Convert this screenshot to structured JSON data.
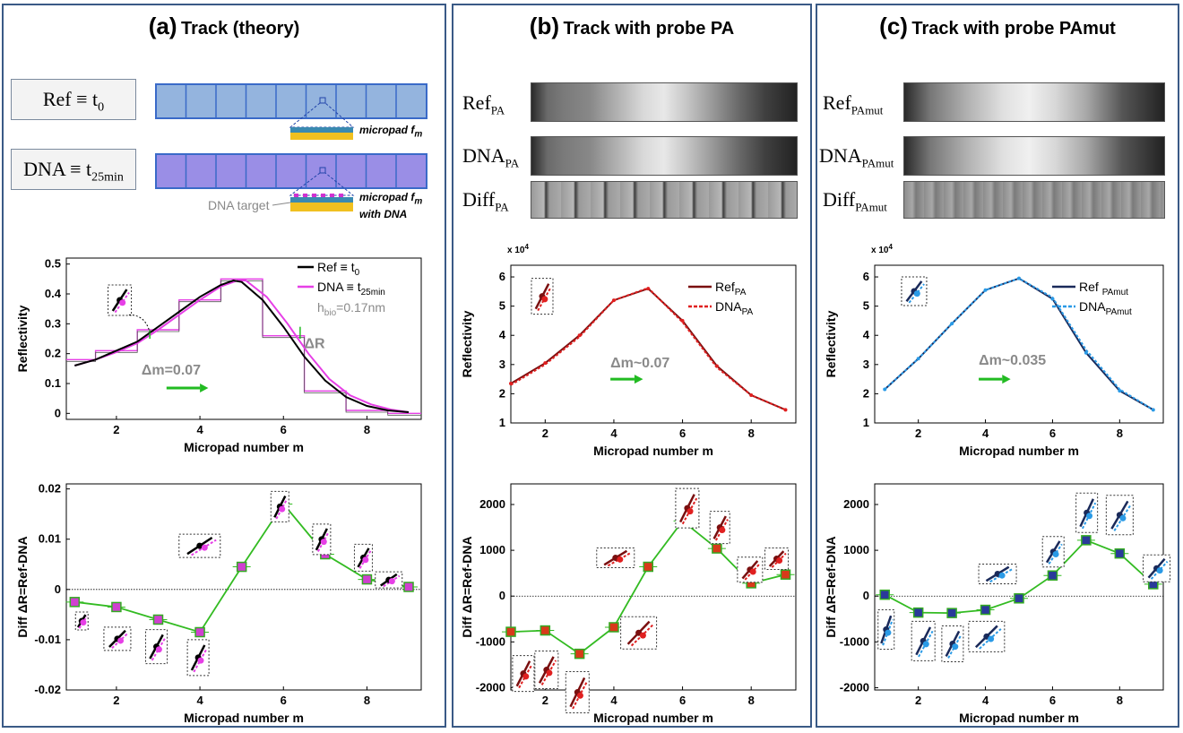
{
  "panels": {
    "a": {
      "letter": "(a)",
      "title": "Track (theory)",
      "ref_label": "Ref ≡ t",
      "ref_sub": "0",
      "dna_label": "DNA ≡ t",
      "dna_sub": "25min",
      "micropad1_label": "micropad f",
      "micropad1_sub": "m",
      "micropad2_label": "micropad f",
      "micropad2_sub": "m",
      "micropad2_line2": "with  DNA",
      "dna_target_label": "DNA target"
    },
    "b": {
      "letter": "(b)",
      "title": "Track with probe PA",
      "ref_label": "Ref",
      "ref_sub": "PA",
      "dna_label": "DNA",
      "dna_sub": "PA",
      "diff_label": "Diff",
      "diff_sub": "PA"
    },
    "c": {
      "letter": "(c)",
      "title": "Track with probe PAmut",
      "ref_label": "Ref",
      "ref_sub": "PAmut",
      "dna_label": "DNA",
      "dna_sub": "PAmut",
      "diff_label": "Diff",
      "diff_sub": "PAmut"
    }
  },
  "colors": {
    "ref_theory": "#000000",
    "dna_theory": "#e63fe6",
    "diff_line": "#33bb22",
    "ref_pa": "#7a0f0f",
    "dna_pa": "#e02020",
    "ref_pamut": "#1a2a5a",
    "dna_pamut": "#2a9ae6",
    "marker_fill_a": "#d040d0",
    "marker_fill_b": "#d83a1a",
    "marker_fill_c": "#2a3a9a",
    "marker_edge": "#33aa22",
    "delta_arrow": "#22bb22",
    "gray_text": "#8a8a8a",
    "track_ref": "#94b4de",
    "track_dna": "#9a8ee6"
  },
  "chart_data": [
    {
      "id": "a-reflectivity",
      "type": "line",
      "xlabel": "Micropad number m",
      "ylabel": "Reflectivity",
      "xlim": [
        0.8,
        9.3
      ],
      "ylim": [
        -0.02,
        0.52
      ],
      "xticks": [
        2,
        4,
        6,
        8
      ],
      "yticks": [
        0,
        0.1,
        0.2,
        0.3,
        0.4,
        0.5
      ],
      "ytick_labels": [
        "0",
        "0.1",
        "0.2",
        "0.3",
        "0.4",
        "0.5"
      ],
      "series": [
        {
          "name": "Ref ≡ t0",
          "x": [
            1,
            1.5,
            2,
            2.5,
            3,
            3.5,
            4,
            4.5,
            4.8,
            5,
            5.5,
            6,
            6.5,
            7,
            7.5,
            8,
            8.5,
            9
          ],
          "values": [
            0.16,
            0.18,
            0.21,
            0.24,
            0.29,
            0.34,
            0.39,
            0.43,
            0.445,
            0.44,
            0.38,
            0.29,
            0.19,
            0.11,
            0.055,
            0.025,
            0.01,
            0.004
          ]
        },
        {
          "name": "DNA ≡ t25min",
          "x": [
            1,
            1.5,
            2,
            2.5,
            3,
            3.5,
            4,
            4.5,
            4.9,
            5.1,
            5.6,
            6.1,
            6.6,
            7.1,
            7.6,
            8.1,
            8.6,
            9
          ],
          "values": [
            0.16,
            0.18,
            0.205,
            0.235,
            0.28,
            0.33,
            0.38,
            0.425,
            0.445,
            0.445,
            0.39,
            0.3,
            0.2,
            0.115,
            0.06,
            0.03,
            0.012,
            0.004
          ]
        },
        {
          "name": "Ref steps",
          "x": [
            1,
            2,
            3,
            4,
            5,
            6,
            7,
            8,
            9
          ],
          "values": [
            0.18,
            0.21,
            0.28,
            0.38,
            0.45,
            0.26,
            0.075,
            0.01,
            0.0
          ]
        }
      ],
      "annotations": [
        "hbio=0.17nm",
        "ΔR",
        "Δm=0.07"
      ],
      "legend": "top-right"
    },
    {
      "id": "a-diff",
      "type": "line",
      "xlabel": "Micropad number m",
      "ylabel": "Diff ΔR=Ref-DNA",
      "xlim": [
        0.8,
        9.3
      ],
      "ylim": [
        -0.02,
        0.021
      ],
      "xticks": [
        2,
        4,
        6,
        8
      ],
      "yticks": [
        -0.02,
        -0.01,
        0,
        0.01,
        0.02
      ],
      "ytick_labels": [
        "-0.02",
        "-0.01",
        "0",
        "0.01",
        "0.02"
      ],
      "series": [
        {
          "name": "Diff",
          "x": [
            1,
            2,
            3,
            4,
            5,
            6,
            7,
            8,
            9
          ],
          "values": [
            -0.0025,
            -0.0035,
            -0.006,
            -0.0085,
            0.0045,
            0.017,
            0.007,
            0.002,
            0.0005
          ]
        }
      ]
    },
    {
      "id": "b-reflectivity",
      "type": "line",
      "xlabel": "Micropad number m",
      "ylabel": "Reflectivity",
      "scale_label": "x 10",
      "scale_exp": "4",
      "xlim": [
        1,
        9.3
      ],
      "ylim": [
        1,
        6.4
      ],
      "xticks": [
        2,
        4,
        6,
        8
      ],
      "yticks": [
        1,
        2,
        3,
        4,
        5,
        6
      ],
      "ytick_labels": [
        "1",
        "2",
        "3",
        "4",
        "5",
        "6"
      ],
      "series": [
        {
          "name": "RefPA",
          "x": [
            1,
            2,
            3,
            4,
            5,
            6,
            7,
            8,
            9
          ],
          "values": [
            2.35,
            3.05,
            4.0,
            5.2,
            5.6,
            4.5,
            2.95,
            1.95,
            1.45
          ]
        },
        {
          "name": "DNAPA",
          "x": [
            1,
            2,
            3,
            4,
            5,
            6,
            7,
            8,
            9
          ],
          "values": [
            2.3,
            3.0,
            3.95,
            5.2,
            5.62,
            4.45,
            2.9,
            1.95,
            1.45
          ]
        }
      ],
      "annotations": [
        "Δm~0.07"
      ],
      "legend": "top-right"
    },
    {
      "id": "b-diff",
      "type": "line",
      "xlabel": "Micropad number m",
      "ylabel": "Diff ΔR=Ref-DNA",
      "xlim": [
        1,
        9.3
      ],
      "ylim": [
        -2050,
        2450
      ],
      "xticks": [
        2,
        4,
        6,
        8
      ],
      "yticks": [
        -2000,
        -1000,
        0,
        1000,
        2000
      ],
      "ytick_labels": [
        "-2000",
        "-1000",
        "0",
        "1000",
        "2000"
      ],
      "series": [
        {
          "name": "Diff",
          "x": [
            1,
            2,
            3,
            4,
            5,
            6,
            7,
            8,
            9
          ],
          "values": [
            -780,
            -750,
            -1260,
            -680,
            640,
            1640,
            1040,
            280,
            470
          ]
        }
      ]
    },
    {
      "id": "c-reflectivity",
      "type": "line",
      "xlabel": "Micropad number m",
      "ylabel": "Reflectivity",
      "scale_label": "x 10",
      "scale_exp": "4",
      "xlim": [
        0.7,
        9.3
      ],
      "ylim": [
        1,
        6.4
      ],
      "xticks": [
        2,
        4,
        6,
        8
      ],
      "yticks": [
        1,
        2,
        3,
        4,
        5,
        6
      ],
      "ytick_labels": [
        "1",
        "2",
        "3",
        "4",
        "5",
        "6"
      ],
      "series": [
        {
          "name": "Ref PAmut",
          "x": [
            1,
            2,
            3,
            4,
            5,
            6,
            7,
            8,
            9
          ],
          "values": [
            2.15,
            3.2,
            4.4,
            5.55,
            5.95,
            5.25,
            3.4,
            2.1,
            1.45
          ]
        },
        {
          "name": "DNAPAmut",
          "x": [
            1,
            2,
            3,
            4,
            5,
            6,
            7,
            8,
            9
          ],
          "values": [
            2.15,
            3.2,
            4.4,
            5.55,
            5.95,
            5.3,
            3.5,
            2.15,
            1.45
          ]
        }
      ],
      "annotations": [
        "Δm~0.035"
      ],
      "legend": "top-right"
    },
    {
      "id": "c-diff",
      "type": "line",
      "xlabel": "Micropad number m",
      "ylabel": "Diff ΔR=Ref-DNA",
      "xlim": [
        0.7,
        9.3
      ],
      "ylim": [
        -2050,
        2450
      ],
      "xticks": [
        2,
        4,
        6,
        8
      ],
      "yticks": [
        -2000,
        -1000,
        0,
        1000,
        2000
      ],
      "ytick_labels": [
        "-2000",
        "-1000",
        "0",
        "1000",
        "2000"
      ],
      "series": [
        {
          "name": "Diff",
          "x": [
            1,
            2,
            3,
            4,
            5,
            6,
            7,
            8,
            9
          ],
          "values": [
            30,
            -360,
            -370,
            -300,
            -50,
            450,
            1220,
            930,
            260
          ]
        }
      ]
    }
  ]
}
